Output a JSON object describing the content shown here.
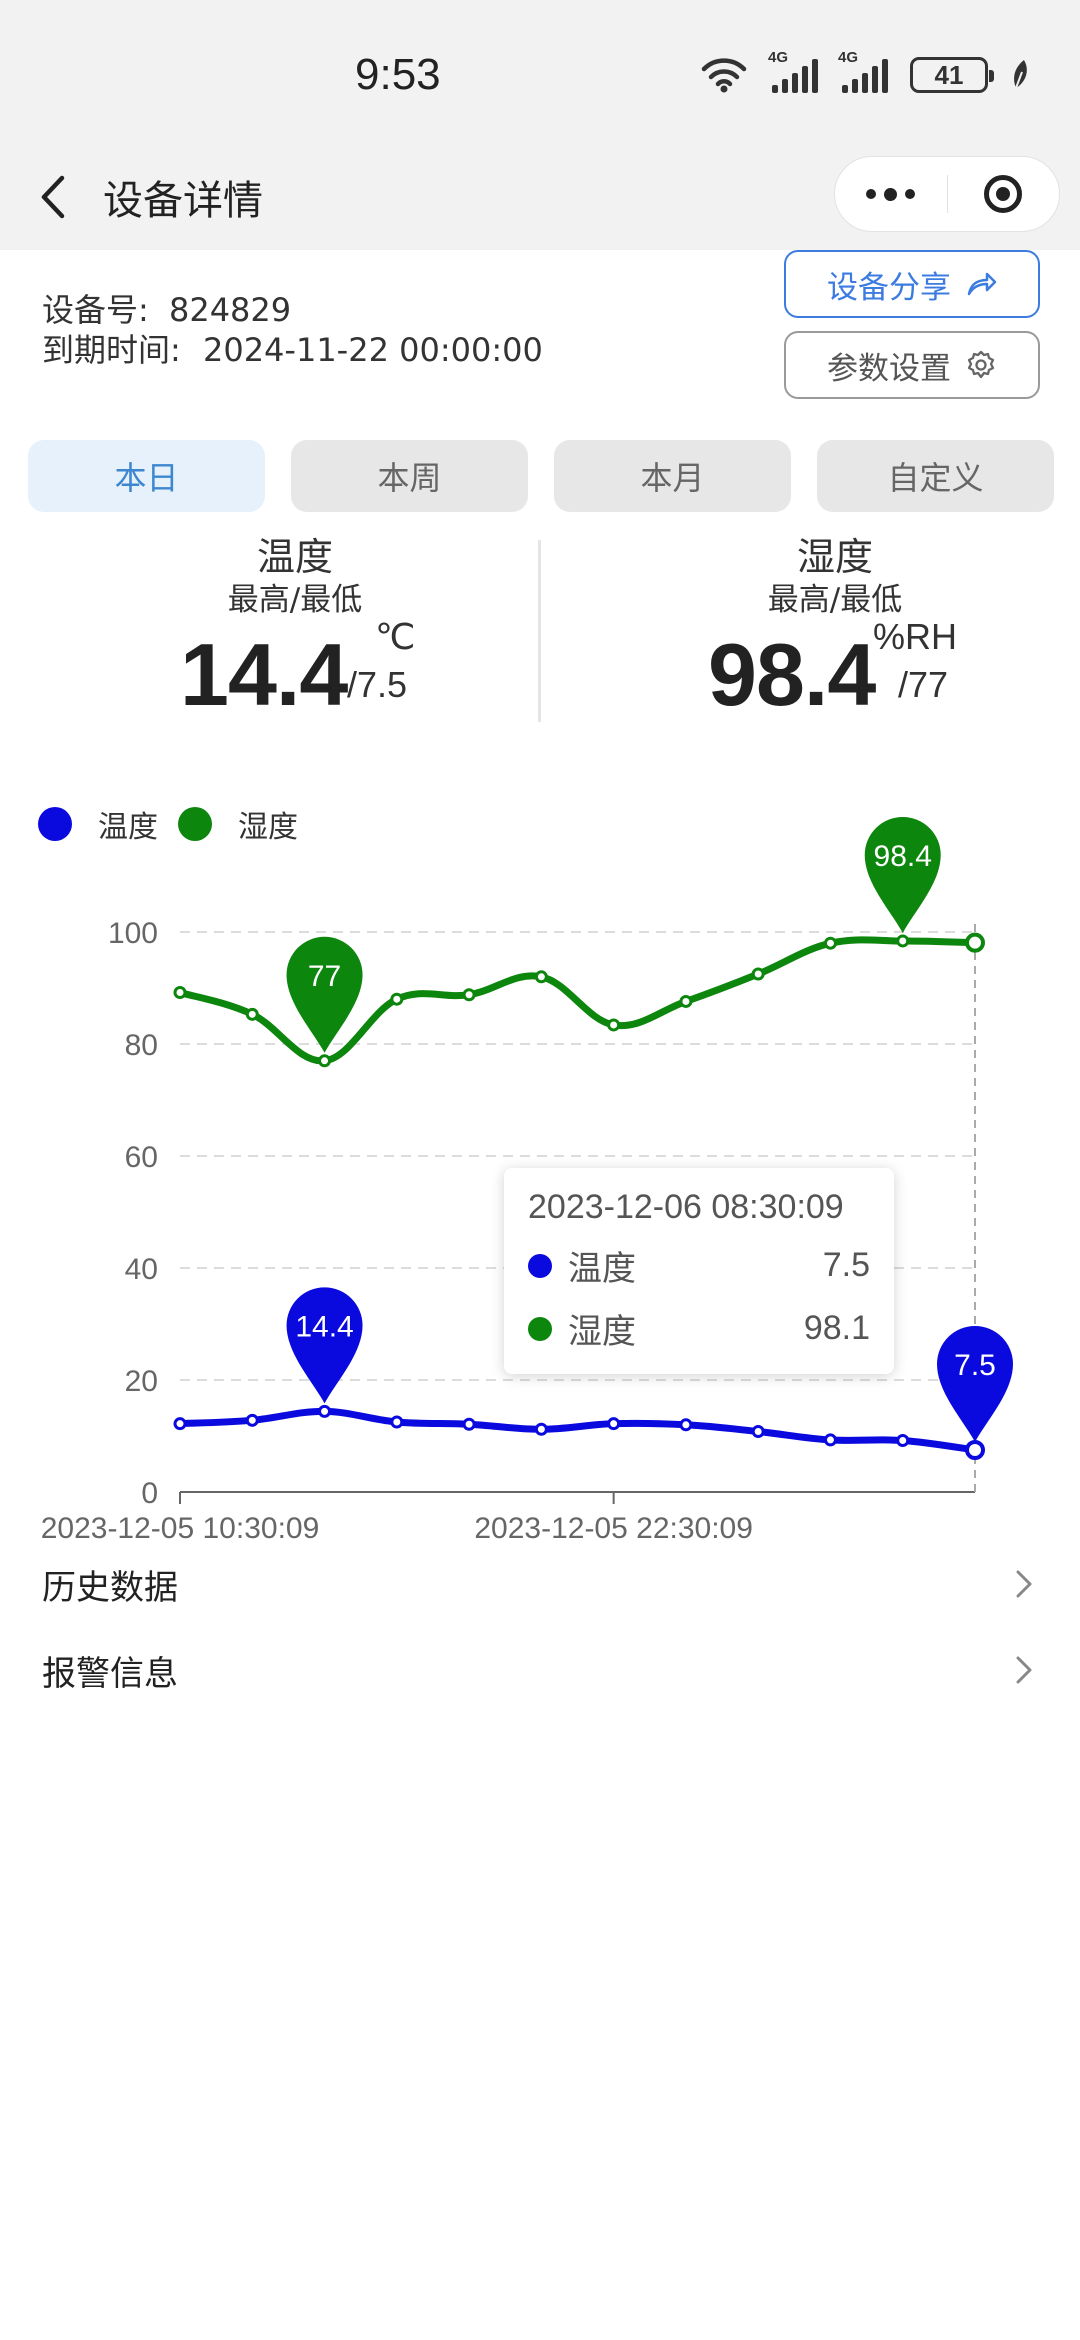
{
  "status_bar": {
    "time": "9:53",
    "signal_label": "4G",
    "battery": "41"
  },
  "nav": {
    "title": "设备详情"
  },
  "device": {
    "id_label": "设备号:",
    "id_value": "824829",
    "expire_label": "到期时间:",
    "expire_value": "2024-11-22 00:00:00"
  },
  "buttons": {
    "share": "设备分享",
    "params": "参数设置"
  },
  "tabs": [
    {
      "label": "本日",
      "active": true
    },
    {
      "label": "本周",
      "active": false
    },
    {
      "label": "本月",
      "active": false
    },
    {
      "label": "自定义",
      "active": false
    }
  ],
  "stats": {
    "temperature": {
      "title": "温度",
      "subtitle": "最高/最低",
      "max": "14.4",
      "min": "/7.5",
      "unit": "℃"
    },
    "humidity": {
      "title": "湿度",
      "subtitle": "最高/最低",
      "max": "98.4",
      "min": "/77",
      "unit": "%RH"
    }
  },
  "chart_data": {
    "type": "line",
    "x": [
      "2023-12-05 10:30:09",
      "",
      "",
      "",
      "",
      "",
      "2023-12-05 22:30:09",
      "",
      "",
      "",
      "",
      "2023-12-06 08:30:09"
    ],
    "x_tick_labels": [
      "2023-12-05 10:30:09",
      "2023-12-05 22:30:09"
    ],
    "ylim": [
      0,
      100
    ],
    "y_ticks": [
      "0",
      "20",
      "40",
      "60",
      "80",
      "100"
    ],
    "grid": true,
    "legend_position": "top-left",
    "series": [
      {
        "name": "温度",
        "color": "#0a0adf",
        "values": [
          12.2,
          12.8,
          14.4,
          12.5,
          12.1,
          11.2,
          12.2,
          12.0,
          10.8,
          9.3,
          9.2,
          7.5
        ],
        "markers": [
          {
            "index": 2,
            "label": "14.4"
          },
          {
            "index": 11,
            "label": "7.5"
          }
        ]
      },
      {
        "name": "湿度",
        "color": "#0d860d",
        "values": [
          89.2,
          85.3,
          77.0,
          88.0,
          88.8,
          92.0,
          83.4,
          87.6,
          92.5,
          98.0,
          98.4,
          98.1
        ],
        "markers": [
          {
            "index": 2,
            "label": "77"
          },
          {
            "index": 10,
            "label": "98.4"
          }
        ]
      }
    ],
    "tooltip": {
      "time": "2023-12-06 08:30:09",
      "rows": [
        {
          "name": "温度",
          "value": "7.5"
        },
        {
          "name": "湿度",
          "value": "98.1"
        }
      ]
    }
  },
  "list": [
    {
      "label": "历史数据"
    },
    {
      "label": "报警信息"
    }
  ]
}
